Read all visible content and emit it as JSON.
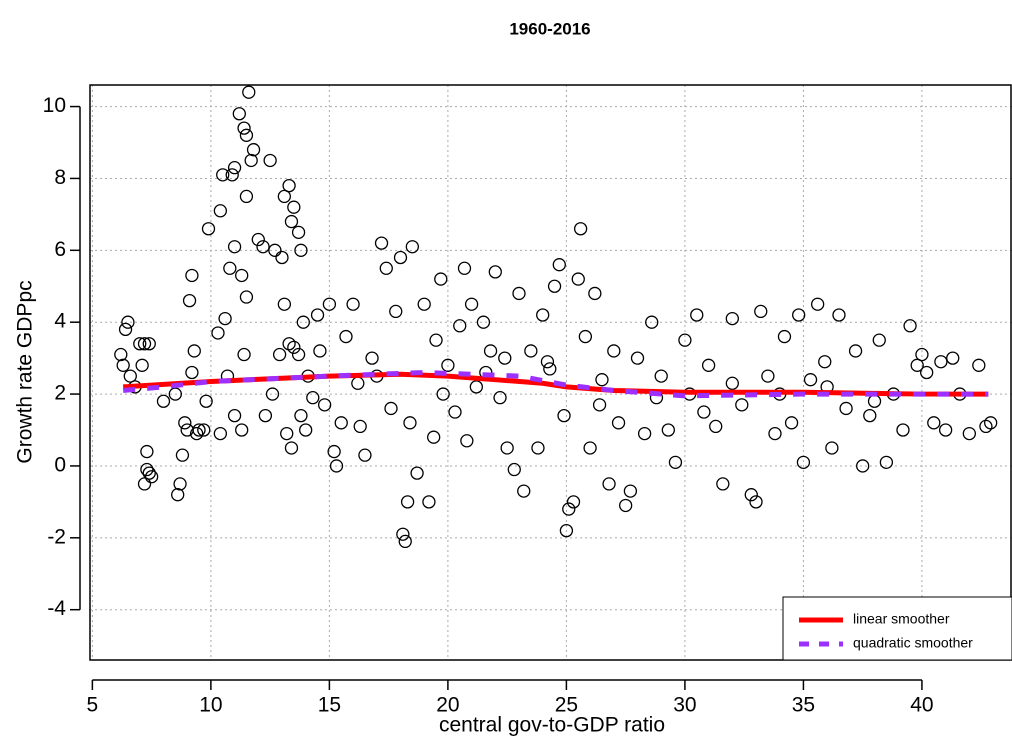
{
  "chart_data": {
    "type": "scatter",
    "title": "1960-2016",
    "x_label": "central gov-to-GDP ratio",
    "y_label": "Growth rate GDPpc",
    "xlim": [
      4.9,
      43.8
    ],
    "ylim": [
      -5.4,
      10.6
    ],
    "xticks": [
      5,
      10,
      15,
      20,
      25,
      30,
      35,
      40
    ],
    "yticks": [
      -4,
      -2,
      0,
      2,
      4,
      6,
      8,
      10
    ],
    "grid": true,
    "point_color": "#000000",
    "legend_position": "bottom-right",
    "x": [
      6.2,
      6.4,
      6.5,
      6.3,
      6.6,
      7,
      7.2,
      7.4,
      7.1,
      7.3,
      7.3,
      7.2,
      7.5,
      7.4,
      6.8,
      8,
      8.5,
      8.6,
      8.7,
      8.8,
      8.9,
      9,
      9.1,
      9.2,
      9.3,
      9.4,
      9.5,
      9.7,
      9.8,
      9.9,
      9.2,
      10.3,
      10.4,
      10.5,
      10.6,
      10.8,
      10.9,
      11,
      11,
      11.2,
      11.3,
      11.4,
      11.5,
      11.5,
      11.6,
      11.7,
      11.8,
      11.5,
      11.4,
      11.3,
      11,
      10.7,
      10.4,
      12,
      12.2,
      12.5,
      12.3,
      12.6,
      12.7,
      13,
      13.1,
      13.3,
      13.4,
      13.5,
      13.7,
      13.8,
      13.1,
      13.3,
      13.5,
      13.7,
      13.9,
      14.1,
      14.3,
      13.2,
      13.4,
      13.8,
      14,
      14.5,
      14.8,
      15,
      15.2,
      15.3,
      15.5,
      15.7,
      16,
      16.3,
      16.5,
      16.8,
      17,
      17.2,
      17.4,
      17.6,
      17.8,
      18,
      18.1,
      18.2,
      18.3,
      18.5,
      18.7,
      19,
      19.2,
      19.4,
      19.5,
      19.7,
      20,
      20.3,
      20.5,
      20.7,
      20.8,
      21,
      21.2,
      21.5,
      21.8,
      22,
      22.2,
      22.5,
      22.8,
      23,
      23.2,
      23.5,
      23.8,
      24,
      24.3,
      24.5,
      24.7,
      24.9,
      25,
      25.1,
      25.3,
      25.5,
      25.6,
      25.8,
      26,
      26.2,
      26.5,
      26.8,
      27,
      27.2,
      27.5,
      27.7,
      28,
      28.3,
      28.6,
      29,
      29.3,
      29.6,
      30,
      30.2,
      30.5,
      31,
      31.3,
      31.6,
      32,
      32.4,
      32.8,
      33,
      33.2,
      33.5,
      33.8,
      34.2,
      34.5,
      34.8,
      35,
      35.3,
      35.6,
      35.9,
      36.2,
      36.5,
      36.8,
      37.2,
      37.5,
      37.8,
      38.2,
      38.5,
      38.8,
      39.2,
      39.5,
      39.8,
      40.2,
      40.5,
      40.8,
      41,
      41.3,
      41.6,
      42,
      42.4,
      42.7,
      42.9,
      40,
      38,
      36,
      34,
      32,
      30.8,
      28.8,
      26.4,
      24.2,
      22.4,
      21.6,
      19.8,
      18.4,
      16.2,
      14.6,
      12.9
    ],
    "y": [
      3.1,
      3.8,
      4.0,
      2.8,
      2.5,
      3.4,
      3.4,
      3.4,
      2.8,
      0.4,
      -0.1,
      -0.5,
      -0.3,
      -0.2,
      2.2,
      1.8,
      2.0,
      -0.8,
      -0.5,
      0.3,
      1.2,
      1.0,
      4.6,
      5.3,
      3.2,
      0.9,
      1.0,
      1.0,
      1.8,
      6.6,
      2.6,
      3.7,
      7.1,
      8.1,
      4.1,
      5.5,
      8.1,
      6.1,
      8.3,
      9.8,
      5.3,
      9.4,
      7.5,
      9.2,
      10.4,
      8.5,
      8.8,
      4.7,
      3.1,
      1.0,
      1.4,
      2.5,
      0.9,
      6.3,
      6.1,
      8.5,
      1.4,
      2.0,
      6.0,
      5.8,
      7.5,
      7.8,
      6.8,
      7.2,
      6.5,
      6.0,
      4.5,
      3.4,
      3.3,
      3.1,
      4.0,
      2.5,
      1.9,
      0.9,
      0.5,
      1.4,
      1.0,
      4.2,
      1.7,
      4.5,
      0.4,
      0.0,
      1.2,
      3.6,
      4.5,
      1.1,
      0.3,
      3.0,
      2.5,
      6.2,
      5.5,
      1.6,
      4.3,
      5.8,
      -1.9,
      -2.1,
      -1.0,
      6.1,
      -0.2,
      4.5,
      -1.0,
      0.8,
      3.5,
      5.2,
      2.8,
      1.5,
      3.9,
      5.5,
      0.7,
      4.5,
      2.2,
      4.0,
      3.2,
      5.4,
      1.9,
      0.5,
      -0.1,
      4.8,
      -0.7,
      3.2,
      0.5,
      4.2,
      2.7,
      5.0,
      5.6,
      1.4,
      -1.8,
      -1.2,
      -1.0,
      5.2,
      6.6,
      3.6,
      0.5,
      4.8,
      2.4,
      -0.5,
      3.2,
      1.2,
      -1.1,
      -0.7,
      3.0,
      0.9,
      4.0,
      2.5,
      1.0,
      0.1,
      3.5,
      2.0,
      4.2,
      2.8,
      1.1,
      -0.5,
      4.1,
      1.7,
      -0.8,
      -1.0,
      4.3,
      2.5,
      0.9,
      3.6,
      1.2,
      4.2,
      0.1,
      2.4,
      4.5,
      2.9,
      0.5,
      4.2,
      1.6,
      3.2,
      0.0,
      1.4,
      3.5,
      0.1,
      2.0,
      1.0,
      3.9,
      2.8,
      2.6,
      1.2,
      2.9,
      1.0,
      3.0,
      2.0,
      0.9,
      2.8,
      1.1,
      1.2,
      3.1,
      1.8,
      2.2,
      2.0,
      2.3,
      1.5,
      1.9,
      1.7,
      2.9,
      3.0,
      2.6,
      2.0,
      1.2,
      2.3,
      3.2,
      3.1
    ],
    "smoothers": [
      {
        "name": "linear smoother",
        "color": "#ff0000",
        "dashed": false,
        "x": [
          6.3,
          10,
          15,
          18,
          20,
          22,
          24,
          25,
          27,
          30,
          35,
          40,
          42.8
        ],
        "values": [
          2.2,
          2.35,
          2.5,
          2.55,
          2.5,
          2.4,
          2.3,
          2.2,
          2.1,
          2.05,
          2.05,
          2.0,
          2.0
        ]
      },
      {
        "name": "quadratic smoother",
        "color": "#9b30ff",
        "dashed": true,
        "x": [
          6.3,
          8,
          10,
          15,
          19,
          21,
          23,
          25,
          27,
          30,
          35,
          40,
          42.8
        ],
        "values": [
          2.1,
          2.2,
          2.35,
          2.5,
          2.6,
          2.55,
          2.5,
          2.25,
          2.1,
          1.95,
          2.0,
          2.0,
          2.0
        ]
      }
    ]
  }
}
